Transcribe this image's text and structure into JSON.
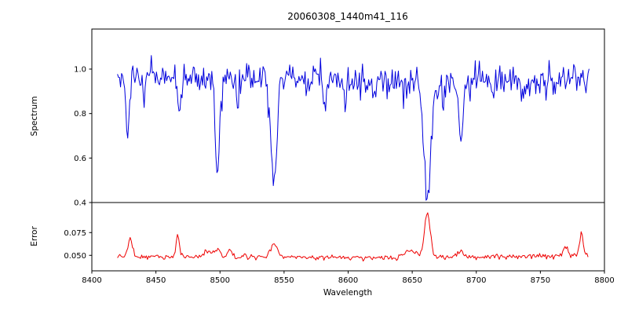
{
  "figure": {
    "title": "20060308_1440m41_116",
    "xlabel": "Wavelength",
    "background": "#ffffff",
    "frame_color": "#000000"
  },
  "chart_data": [
    {
      "type": "line",
      "name": "spectrum",
      "title": "20060308_1440m41_116",
      "ylabel": "Spectrum",
      "color": "#0000dd",
      "xlim": [
        8400,
        8800
      ],
      "ylim": [
        0.4,
        1.18
      ],
      "xticks": [
        8400,
        8450,
        8500,
        8550,
        8600,
        8650,
        8700,
        8750,
        8800
      ],
      "xtick_labels": [
        "8400",
        "8450",
        "8500",
        "8550",
        "8600",
        "8650",
        "8700",
        "8750",
        "8800"
      ],
      "yticks": [
        0.4,
        0.6,
        0.8,
        1.0
      ],
      "ytick_labels": [
        "0.4",
        "0.6",
        "0.8",
        "1.0"
      ],
      "x_start": 8420,
      "x_end": 8788,
      "x_step": 0.8,
      "noise_sigma": 0.034,
      "continuum": [
        [
          8420,
          0.97
        ],
        [
          8470,
          0.96
        ],
        [
          8520,
          0.955
        ],
        [
          8560,
          0.955
        ],
        [
          8600,
          0.94
        ],
        [
          8640,
          0.93
        ],
        [
          8665,
          0.94
        ],
        [
          8700,
          0.95
        ],
        [
          8750,
          0.95
        ],
        [
          8788,
          0.96
        ]
      ],
      "absorption_lines": [
        {
          "center": 8428,
          "depth": 0.26,
          "width": 1.2
        },
        {
          "center": 8441,
          "depth": 0.12,
          "width": 1.0
        },
        {
          "center": 8468,
          "depth": 0.15,
          "width": 1.2
        },
        {
          "center": 8498,
          "depth": 0.4,
          "width": 1.8
        },
        {
          "center": 8514,
          "depth": 0.1,
          "width": 1.0
        },
        {
          "center": 8542,
          "depth": 0.46,
          "width": 2.4
        },
        {
          "center": 8582,
          "depth": 0.1,
          "width": 1.0
        },
        {
          "center": 8598,
          "depth": 0.1,
          "width": 1.0
        },
        {
          "center": 8662,
          "depth": 0.52,
          "width": 2.6
        },
        {
          "center": 8674,
          "depth": 0.1,
          "width": 1.0
        },
        {
          "center": 8688,
          "depth": 0.25,
          "width": 1.6
        },
        {
          "center": 8713,
          "depth": 0.08,
          "width": 1.0
        },
        {
          "center": 8736,
          "depth": 0.08,
          "width": 1.0
        }
      ]
    },
    {
      "type": "line",
      "name": "error",
      "ylabel": "Error",
      "color": "#ee0000",
      "xlim": [
        8400,
        8800
      ],
      "ylim": [
        0.033,
        0.108
      ],
      "xticks": [
        8400,
        8450,
        8500,
        8550,
        8600,
        8650,
        8700,
        8750,
        8800
      ],
      "xtick_labels": [
        "8400",
        "8450",
        "8500",
        "8550",
        "8600",
        "8650",
        "8700",
        "8750",
        "8800"
      ],
      "yticks": [
        0.05,
        0.075
      ],
      "ytick_labels": [
        "0.050",
        "0.075"
      ],
      "x_start": 8420,
      "x_end": 8788,
      "x_step": 0.9,
      "noise_sigma": 0.0014,
      "baseline": [
        [
          8420,
          0.0485
        ],
        [
          8500,
          0.0485
        ],
        [
          8560,
          0.048
        ],
        [
          8620,
          0.047
        ],
        [
          8660,
          0.048
        ],
        [
          8700,
          0.048
        ],
        [
          8750,
          0.049
        ],
        [
          8788,
          0.051
        ]
      ],
      "spikes": [
        {
          "center": 8430,
          "height": 0.022,
          "width": 1.5
        },
        {
          "center": 8467,
          "height": 0.024,
          "width": 1.2
        },
        {
          "center": 8490,
          "height": 0.007,
          "width": 2.0
        },
        {
          "center": 8498,
          "height": 0.01,
          "width": 2.0
        },
        {
          "center": 8508,
          "height": 0.008,
          "width": 1.5
        },
        {
          "center": 8542,
          "height": 0.015,
          "width": 2.5
        },
        {
          "center": 8650,
          "height": 0.007,
          "width": 6.0
        },
        {
          "center": 8662,
          "height": 0.047,
          "width": 2.2
        },
        {
          "center": 8688,
          "height": 0.006,
          "width": 2.0
        },
        {
          "center": 8770,
          "height": 0.011,
          "width": 1.5
        },
        {
          "center": 8782,
          "height": 0.026,
          "width": 1.2
        }
      ]
    }
  ]
}
